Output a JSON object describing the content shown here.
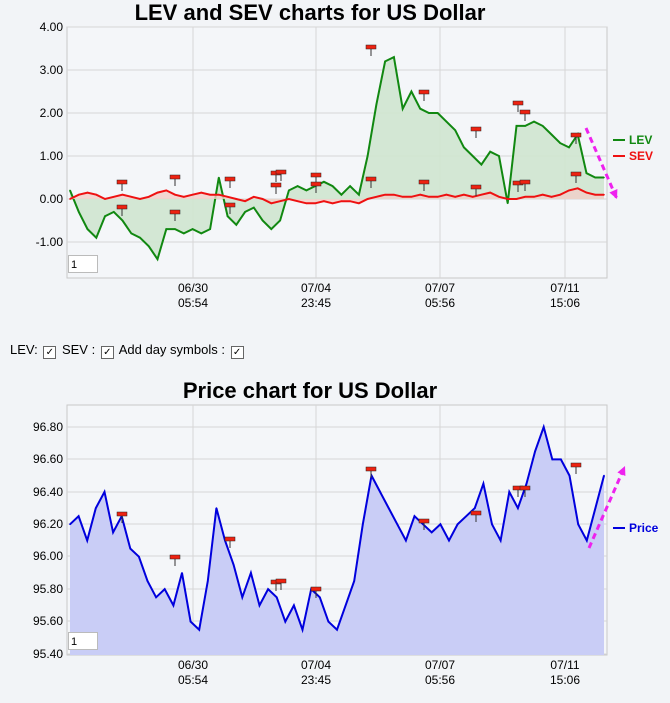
{
  "chart_data": [
    {
      "type": "line",
      "title": "LEV and SEV charts for US Dollar",
      "ylim": [
        -1.8,
        4.0
      ],
      "yticks": [
        "4.00",
        "3.00",
        "2.00",
        "1.00",
        "0.00",
        "-1.00"
      ],
      "xticks": [
        {
          "date": "06/30",
          "time": "05:54"
        },
        {
          "date": "07/04",
          "time": "23:45"
        },
        {
          "date": "07/07",
          "time": "05:56"
        },
        {
          "date": "07/11",
          "time": "15:06"
        }
      ],
      "series": [
        {
          "name": "LEV",
          "color": "#118811",
          "values": [
            0.2,
            -0.3,
            -0.7,
            -0.9,
            -0.4,
            -0.3,
            -0.5,
            -0.8,
            -0.9,
            -1.1,
            -1.4,
            -0.7,
            -0.7,
            -0.8,
            -0.7,
            -0.8,
            -0.7,
            0.5,
            -0.4,
            -0.6,
            -0.3,
            -0.2,
            -0.5,
            -0.7,
            -0.5,
            0.2,
            0.3,
            0.2,
            0.3,
            0.4,
            0.3,
            0.1,
            0.3,
            0.1,
            1.0,
            2.2,
            3.2,
            3.3,
            2.1,
            2.5,
            2.1,
            2.0,
            2.0,
            1.8,
            1.6,
            1.2,
            1.0,
            0.8,
            1.1,
            1.0,
            -0.1,
            1.7,
            1.7,
            1.8,
            1.7,
            1.5,
            1.3,
            1.2,
            1.5,
            0.6,
            0.5,
            0.5
          ]
        },
        {
          "name": "SEV",
          "color": "#ee1111",
          "values": [
            0.0,
            0.1,
            0.15,
            0.1,
            0.0,
            0.05,
            0.1,
            0.05,
            0.0,
            0.05,
            0.15,
            0.2,
            0.1,
            0.05,
            0.1,
            0.15,
            0.1,
            0.1,
            0.05,
            0.0,
            -0.05,
            0.05,
            0.0,
            -0.1,
            -0.05,
            0.0,
            -0.05,
            -0.1,
            -0.1,
            -0.05,
            -0.1,
            -0.05,
            -0.05,
            -0.1,
            0.0,
            0.05,
            0.1,
            0.1,
            0.05,
            0.05,
            0.1,
            0.05,
            0.05,
            0.1,
            0.05,
            0.1,
            0.05,
            0.1,
            0.15,
            0.05,
            0.0,
            0.0,
            0.05,
            0.05,
            0.1,
            0.05,
            0.1,
            0.2,
            0.25,
            0.15,
            0.1,
            0.1
          ]
        }
      ],
      "legend": "right",
      "input_value": "1"
    },
    {
      "type": "area",
      "title": "Price chart for US Dollar",
      "ylim": [
        95.4,
        96.85
      ],
      "yticks": [
        "96.80",
        "96.60",
        "96.40",
        "96.20",
        "96.00",
        "95.80",
        "95.60",
        "95.40"
      ],
      "xticks": [
        {
          "date": "06/30",
          "time": "05:54"
        },
        {
          "date": "07/04",
          "time": "23:45"
        },
        {
          "date": "07/07",
          "time": "05:56"
        },
        {
          "date": "07/11",
          "time": "15:06"
        }
      ],
      "series": [
        {
          "name": "Price",
          "color": "#0000dd",
          "values": [
            96.2,
            96.25,
            96.1,
            96.3,
            96.4,
            96.15,
            96.25,
            96.05,
            96.0,
            95.85,
            95.75,
            95.8,
            95.7,
            95.9,
            95.6,
            95.55,
            95.85,
            96.3,
            96.1,
            95.95,
            95.75,
            95.9,
            95.7,
            95.8,
            95.75,
            95.6,
            95.7,
            95.55,
            95.8,
            95.75,
            95.6,
            95.55,
            95.7,
            95.85,
            96.2,
            96.5,
            96.4,
            96.3,
            96.2,
            96.1,
            96.25,
            96.2,
            96.15,
            96.2,
            96.1,
            96.2,
            96.25,
            96.3,
            96.45,
            96.2,
            96.1,
            96.4,
            96.3,
            96.45,
            96.65,
            96.8,
            96.6,
            96.6,
            96.5,
            96.2,
            96.1,
            96.3,
            96.5
          ]
        }
      ],
      "legend": "right",
      "input_value": "1"
    }
  ],
  "controls": {
    "lev_label": "LEV:",
    "sev_label": "SEV :",
    "day_label": "Add day symbols :",
    "check_mark": "✓"
  }
}
